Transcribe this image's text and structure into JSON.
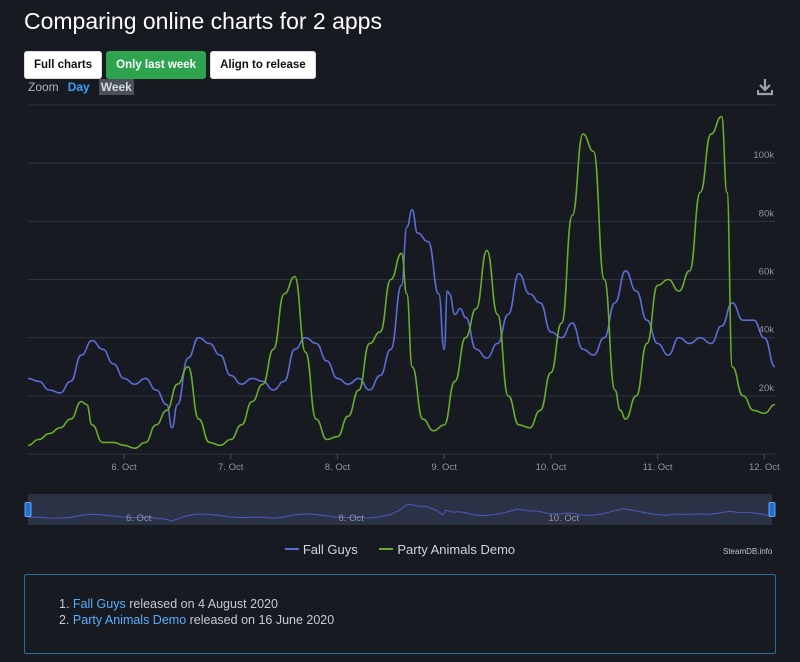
{
  "title": "Comparing online charts for 2 apps",
  "buttons": {
    "full": "Full charts",
    "week": "Only last week",
    "align": "Align to release"
  },
  "zoom": {
    "label": "Zoom",
    "day": "Day",
    "week": "Week"
  },
  "icons": {
    "download": "download-icon"
  },
  "colors": {
    "fall_guys": "#5c6bd6",
    "party_animals": "#6aab2e",
    "accent_green": "#2ea44f",
    "link": "#58aefc"
  },
  "chart_data": {
    "type": "line",
    "x_unit": "day",
    "x_range": [
      5.0,
      12.0
    ],
    "x_ticks": [
      {
        "x": 5.9,
        "label": "6. Oct"
      },
      {
        "x": 6.9,
        "label": "7. Oct"
      },
      {
        "x": 7.9,
        "label": "8. Oct"
      },
      {
        "x": 8.9,
        "label": "9. Oct"
      },
      {
        "x": 9.9,
        "label": "10. Oct"
      },
      {
        "x": 10.9,
        "label": "11. Oct"
      },
      {
        "x": 11.9,
        "label": "12. Oct"
      }
    ],
    "ylim": [
      0,
      120000
    ],
    "y_ticks": [
      {
        "y": 20000,
        "label": "20k"
      },
      {
        "y": 40000,
        "label": "40k"
      },
      {
        "y": 60000,
        "label": "60k"
      },
      {
        "y": 80000,
        "label": "80k"
      },
      {
        "y": 100000,
        "label": "100k"
      }
    ],
    "grid": true,
    "legend_position": "bottom",
    "series": [
      {
        "name": "Fall Guys",
        "color": "#5c6bd6",
        "x": [
          5.0,
          5.1,
          5.2,
          5.3,
          5.4,
          5.5,
          5.6,
          5.7,
          5.8,
          5.9,
          6.0,
          6.1,
          6.2,
          6.3,
          6.35,
          6.4,
          6.5,
          6.6,
          6.7,
          6.8,
          6.9,
          7.0,
          7.1,
          7.2,
          7.3,
          7.4,
          7.5,
          7.6,
          7.7,
          7.8,
          7.9,
          8.0,
          8.1,
          8.2,
          8.3,
          8.4,
          8.5,
          8.55,
          8.6,
          8.65,
          8.75,
          8.85,
          8.9,
          8.93,
          8.95,
          9.0,
          9.05,
          9.1,
          9.2,
          9.3,
          9.4,
          9.5,
          9.6,
          9.7,
          9.8,
          9.9,
          10.0,
          10.1,
          10.2,
          10.3,
          10.4,
          10.5,
          10.6,
          10.7,
          10.8,
          10.9,
          11.0,
          11.1,
          11.2,
          11.3,
          11.4,
          11.5,
          11.6,
          11.7,
          11.8,
          11.9,
          12.0
        ],
        "y": [
          26000,
          25000,
          22000,
          21000,
          25000,
          34000,
          39000,
          36000,
          31000,
          26000,
          24000,
          26000,
          22000,
          17000,
          9000,
          17000,
          33000,
          40000,
          38000,
          34000,
          27000,
          24000,
          26000,
          25000,
          22000,
          25000,
          36000,
          40000,
          38000,
          32000,
          26000,
          24000,
          26000,
          22000,
          27000,
          36000,
          58000,
          78000,
          84000,
          76000,
          73000,
          55000,
          36000,
          56000,
          55000,
          48000,
          50000,
          47000,
          36000,
          33000,
          38000,
          48000,
          62000,
          55000,
          52000,
          42000,
          40000,
          45000,
          36000,
          34000,
          40000,
          52000,
          63000,
          56000,
          46000,
          38000,
          34000,
          40000,
          38000,
          40000,
          38000,
          44000,
          52000,
          46000,
          46000,
          40000,
          30000
        ]
      },
      {
        "name": "Party Animals Demo",
        "color": "#6aab2e",
        "x": [
          5.0,
          5.1,
          5.2,
          5.3,
          5.4,
          5.5,
          5.55,
          5.6,
          5.7,
          5.8,
          5.9,
          6.0,
          6.1,
          6.2,
          6.3,
          6.4,
          6.5,
          6.6,
          6.7,
          6.8,
          6.9,
          7.0,
          7.1,
          7.2,
          7.3,
          7.4,
          7.5,
          7.6,
          7.7,
          7.8,
          7.9,
          8.0,
          8.1,
          8.2,
          8.3,
          8.4,
          8.5,
          8.55,
          8.6,
          8.7,
          8.8,
          8.9,
          9.0,
          9.1,
          9.2,
          9.3,
          9.4,
          9.5,
          9.6,
          9.7,
          9.8,
          9.9,
          10.0,
          10.1,
          10.2,
          10.3,
          10.4,
          10.5,
          10.55,
          10.6,
          10.7,
          10.8,
          10.9,
          11.0,
          11.1,
          11.2,
          11.3,
          11.4,
          11.5,
          11.55,
          11.6,
          11.7,
          11.8,
          11.9,
          12.0
        ],
        "y": [
          3000,
          5000,
          7000,
          9000,
          12000,
          18000,
          17000,
          10000,
          4000,
          4000,
          3000,
          2000,
          4000,
          10000,
          15000,
          24000,
          30000,
          12000,
          4000,
          3000,
          5000,
          10000,
          18000,
          24000,
          36000,
          55000,
          61000,
          35000,
          12000,
          5000,
          6000,
          13000,
          22000,
          38000,
          42000,
          60000,
          69000,
          55000,
          30000,
          12000,
          8000,
          10000,
          25000,
          40000,
          50000,
          70000,
          48000,
          20000,
          10000,
          9000,
          15000,
          28000,
          45000,
          82000,
          110000,
          104000,
          60000,
          22000,
          15000,
          12000,
          20000,
          38000,
          58000,
          60000,
          56000,
          63000,
          90000,
          110000,
          116000,
          90000,
          30000,
          20000,
          15000,
          14000,
          17000
        ]
      }
    ],
    "navigator": {
      "labels": [
        "6. Oct",
        "8. Oct",
        "10. Oct"
      ]
    }
  },
  "legend": {
    "fall_guys": "Fall Guys",
    "party_animals": "Party Animals Demo"
  },
  "credit": "SteamDB.info",
  "releases": [
    {
      "num": "1.",
      "app": "Fall Guys",
      "text": "released on 4 August 2020"
    },
    {
      "num": "2.",
      "app": "Party Animals Demo",
      "text": "released on 16 June 2020"
    }
  ]
}
